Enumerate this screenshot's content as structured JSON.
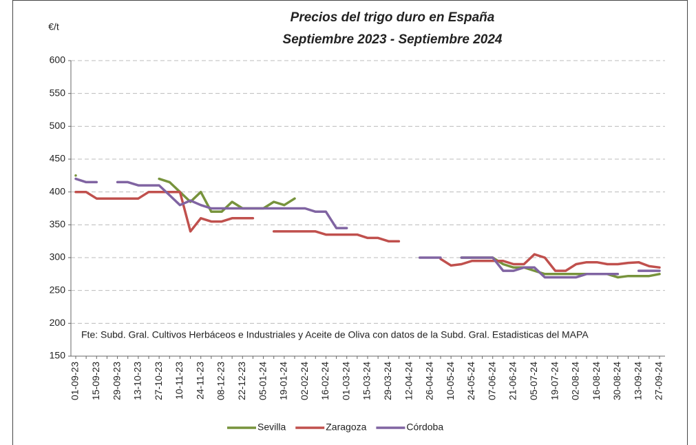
{
  "chart_data": {
    "type": "line",
    "title": "Precios del trigo duro en España",
    "subtitle": "Septiembre 2023 - Septiembre 2024",
    "y_label": "€/t",
    "source_note": "Fte: Subd. Gral. Cultivos Herbáceos e Industriales y Aceite de Oliva con datos de la Subd. Gral. Estadisticas del MAPA",
    "categories": [
      "01-09-23",
      null,
      "15-09-23",
      null,
      "29-09-23",
      null,
      "13-10-23",
      null,
      "27-10-23",
      null,
      "10-11-23",
      null,
      "24-11-23",
      null,
      "08-12-23",
      null,
      "22-12-23",
      null,
      "05-01-24",
      null,
      "19-01-24",
      null,
      "02-02-24",
      null,
      "16-02-24",
      null,
      "01-03-24",
      null,
      "15-03-24",
      null,
      "29-03-24",
      null,
      "12-04-24",
      null,
      "26-04-24",
      null,
      "10-05-24",
      null,
      "24-05-24",
      null,
      "07-06-24",
      null,
      "21-06-24",
      null,
      "05-07-24",
      null,
      "19-07-24",
      null,
      "02-08-24",
      null,
      "16-08-24",
      null,
      "30-08-24",
      null,
      "13-09-24",
      null,
      "27-09-24"
    ],
    "series": [
      {
        "name": "Sevilla",
        "color": "#77933c",
        "values": [
          425,
          null,
          null,
          null,
          null,
          null,
          null,
          null,
          420,
          415,
          400,
          385,
          400,
          370,
          370,
          385,
          375,
          375,
          375,
          385,
          380,
          390,
          null,
          null,
          null,
          null,
          null,
          null,
          null,
          null,
          null,
          null,
          null,
          null,
          null,
          null,
          null,
          300,
          300,
          300,
          300,
          290,
          285,
          285,
          280,
          275,
          275,
          275,
          275,
          275,
          275,
          275,
          270,
          272,
          272,
          272,
          275
        ]
      },
      {
        "name": "Zaragoza",
        "color": "#c0504d",
        "values": [
          400,
          400,
          390,
          390,
          390,
          390,
          390,
          400,
          400,
          400,
          400,
          340,
          360,
          355,
          355,
          360,
          360,
          360,
          null,
          340,
          340,
          340,
          340,
          340,
          335,
          335,
          335,
          335,
          330,
          330,
          325,
          325,
          null,
          null,
          null,
          298,
          288,
          290,
          295,
          295,
          295,
          295,
          290,
          290,
          305,
          300,
          280,
          280,
          290,
          293,
          293,
          290,
          290,
          292,
          293,
          287,
          285
        ]
      },
      {
        "name": "Córdoba",
        "color": "#8064a2",
        "values": [
          420,
          415,
          415,
          null,
          415,
          415,
          410,
          410,
          410,
          395,
          380,
          387,
          380,
          375,
          375,
          375,
          375,
          375,
          375,
          375,
          375,
          375,
          375,
          370,
          370,
          345,
          345,
          null,
          null,
          null,
          null,
          null,
          null,
          300,
          300,
          300,
          null,
          300,
          300,
          300,
          300,
          280,
          280,
          285,
          285,
          270,
          270,
          270,
          270,
          275,
          275,
          275,
          275,
          null,
          280,
          280,
          280
        ]
      }
    ],
    "ylim": [
      150,
      600
    ],
    "yticks": [
      150,
      200,
      250,
      300,
      350,
      400,
      450,
      500,
      550,
      600
    ],
    "grid": true,
    "legend": "bottom"
  }
}
